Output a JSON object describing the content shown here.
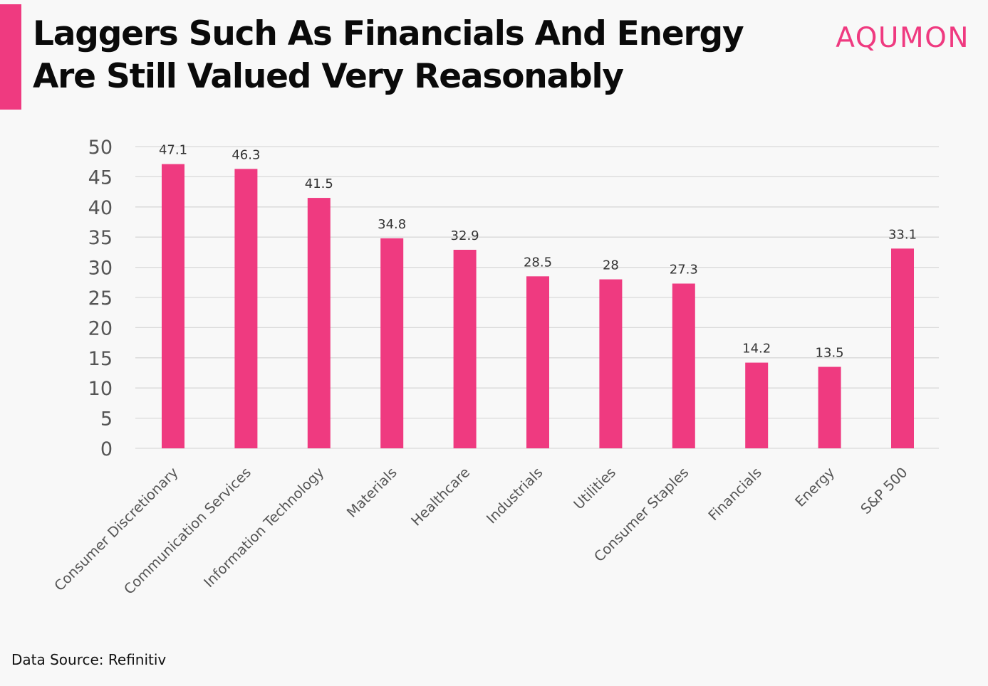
{
  "header": {
    "title": "Laggers Such As Financials And Energy Are Still Valued Very Reasonably",
    "brand": "AQUMON"
  },
  "footer": {
    "source": "Data Source: Refinitiv"
  },
  "colors": {
    "accent": "#ef3a80",
    "bar": "#ef3a80",
    "gridline": "#d9d9d9",
    "axis_text": "#555555",
    "label_text": "#333333"
  },
  "chart_data": {
    "type": "bar",
    "categories": [
      "Consumer Discretionary",
      "Communication Services",
      "Information Technology",
      "Materials",
      "Healthcare",
      "Industrials",
      "Utilities",
      "Consumer Staples",
      "Financials",
      "Energy",
      "S&P 500"
    ],
    "values": [
      47.1,
      46.3,
      41.5,
      34.8,
      32.9,
      28.5,
      28,
      27.3,
      14.2,
      13.5,
      33.1
    ],
    "data_labels": [
      "47.1",
      "46.3",
      "41.5",
      "34.8",
      "32.9",
      "28.5",
      "28",
      "27.3",
      "14.2",
      "13.5",
      "33.1"
    ],
    "title": "",
    "xlabel": "",
    "ylabel": "",
    "ylim": [
      0,
      50
    ],
    "yticks": [
      0,
      5,
      10,
      15,
      20,
      25,
      30,
      35,
      40,
      45,
      50
    ],
    "grid": true,
    "legend": "none"
  }
}
